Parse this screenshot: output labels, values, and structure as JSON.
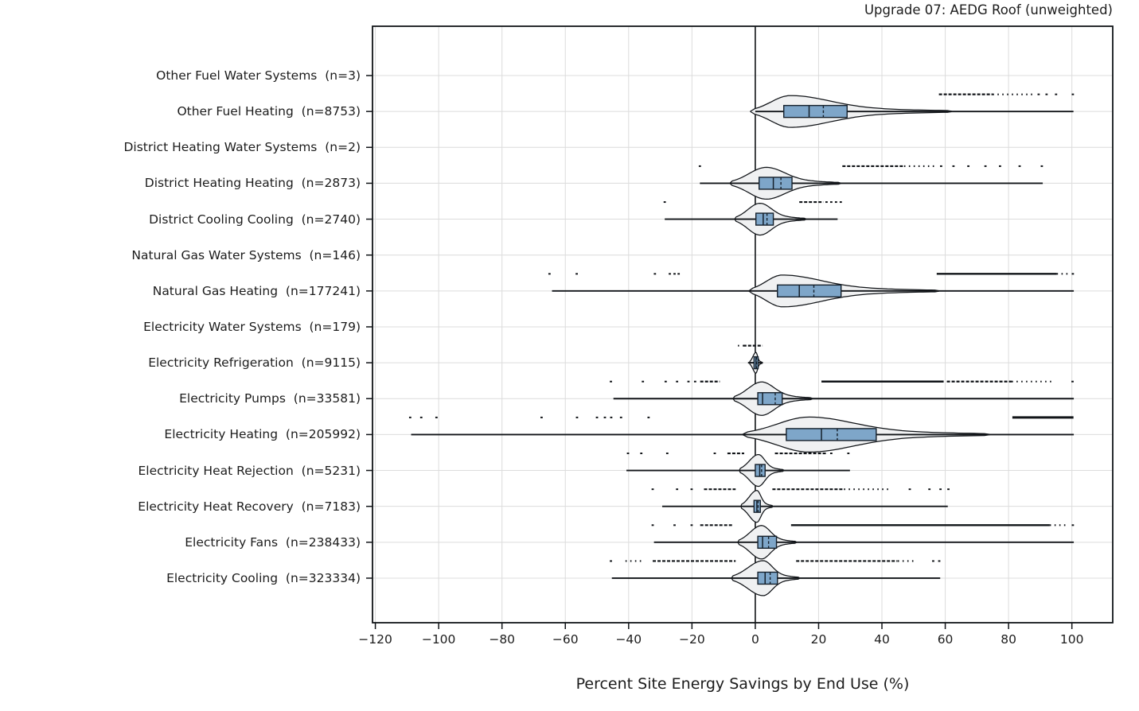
{
  "chart_data": {
    "type": "violin+box",
    "title": "Upgrade 07: AEDG Roof (unweighted)",
    "xlabel": "Percent Site Energy Savings by End Use (%)",
    "xlim": [
      -120.9,
      112.9
    ],
    "x_ticks": [
      -120,
      -100,
      -80,
      -60,
      -40,
      -20,
      0,
      20,
      40,
      60,
      80,
      100
    ],
    "grid": true,
    "zero_line": 0,
    "colors": {
      "box_fill": "#7ea6c9",
      "violin_fill": "#f0f1f2",
      "grid": "#dcdcdc",
      "line": "#111418",
      "text": "#1c1c1c"
    },
    "categories": [
      {
        "label": "Other Fuel Water Systems",
        "n": 3,
        "whisker": null,
        "box": null,
        "violin": null,
        "outlier_segments": [],
        "outlier_points": []
      },
      {
        "label": "Other Fuel Heating",
        "n": 8753,
        "whisker": [
          0,
          100.5
        ],
        "box": {
          "q1": 9.0,
          "median": 17.0,
          "mean": 21.5,
          "q3": 29.0
        },
        "violin": {
          "lo": -1.5,
          "hi": 62,
          "peak": 11,
          "hw": 20
        },
        "outlier_segments": [
          {
            "a": 58,
            "b": 75,
            "style": "dense"
          },
          {
            "a": 75,
            "b": 88,
            "style": "dots"
          }
        ],
        "outlier_points": [
          89.5,
          92,
          95,
          100.3
        ]
      },
      {
        "label": "District Heating Water Systems",
        "n": 2,
        "whisker": null,
        "box": null,
        "violin": null,
        "outlier_segments": [],
        "outlier_points": []
      },
      {
        "label": "District Heating Heating",
        "n": 2873,
        "whisker": [
          -17.5,
          90.8
        ],
        "box": {
          "q1": 1.2,
          "median": 5.7,
          "mean": 8.1,
          "q3": 11.6
        },
        "violin": {
          "lo": -8,
          "hi": 27,
          "peak": 3.5,
          "hw": 20
        },
        "outlier_segments": [
          {
            "a": 27.5,
            "b": 47,
            "style": "dense"
          },
          {
            "a": 47,
            "b": 57,
            "style": "dots"
          }
        ],
        "outlier_points": [
          -17.5,
          58.7,
          62.6,
          67.3,
          72.7,
          77.3,
          83.5,
          90.5
        ]
      },
      {
        "label": "District Cooling Cooling",
        "n": 2740,
        "whisker": [
          -28.6,
          26
        ],
        "box": {
          "q1": 0.2,
          "median": 2.5,
          "mean": 3.7,
          "q3": 5.7
        },
        "violin": {
          "lo": -6.5,
          "hi": 16,
          "peak": 1.5,
          "hw": 20
        },
        "outlier_segments": [
          {
            "a": 13.9,
            "b": 21.5,
            "style": "dense"
          }
        ],
        "outlier_points": [
          -28.6,
          22.5,
          24,
          25.5,
          27
        ]
      },
      {
        "label": "Natural Gas Water Systems",
        "n": 146,
        "whisker": null,
        "box": null,
        "violin": null,
        "outlier_segments": [],
        "outlier_points": []
      },
      {
        "label": "Natural Gas Heating",
        "n": 177241,
        "whisker": [
          -64.2,
          100.6
        ],
        "box": {
          "q1": 7.0,
          "median": 13.9,
          "mean": 18.5,
          "q3": 27.1
        },
        "violin": {
          "lo": -2,
          "hi": 58,
          "peak": 8.5,
          "hw": 20
        },
        "outlier_segments": [
          {
            "a": 57.3,
            "b": 95.2,
            "style": "solid"
          },
          {
            "a": 95.2,
            "b": 99.2,
            "style": "dots"
          }
        ],
        "outlier_points": [
          -65,
          -56.4,
          -31.7,
          -27,
          -25.5,
          -24.2,
          100.3
        ]
      },
      {
        "label": "Electricity Water Systems",
        "n": 179,
        "whisker": null,
        "box": null,
        "violin": null,
        "outlier_segments": [],
        "outlier_points": []
      },
      {
        "label": "Electricity Refrigeration",
        "n": 9115,
        "whisker": [
          -2.3,
          2.4
        ],
        "box": {
          "q1": -0.4,
          "median": 0.2,
          "mean": 0.4,
          "q3": 0.9
        },
        "violin": {
          "lo": -1.8,
          "hi": 2.2,
          "peak": 0.2,
          "hw": 13
        },
        "outlier_segments": [
          {
            "a": -5.5,
            "b": -3.8,
            "style": "dots"
          },
          {
            "a": -3.8,
            "b": 2.3,
            "style": "dense"
          }
        ],
        "outlier_points": []
      },
      {
        "label": "Electricity Pumps",
        "n": 33581,
        "whisker": [
          -44.8,
          100.6
        ],
        "box": {
          "q1": 0.8,
          "median": 2.3,
          "mean": 6.3,
          "q3": 8.5
        },
        "violin": {
          "lo": -7,
          "hi": 18,
          "peak": 2,
          "hw": 21
        },
        "outlier_segments": [
          {
            "a": -17.4,
            "b": -11.2,
            "style": "dense"
          },
          {
            "a": 20.9,
            "b": 59.5,
            "style": "solid"
          },
          {
            "a": 60.5,
            "b": 81,
            "style": "dense"
          },
          {
            "a": 81,
            "b": 94,
            "style": "dots"
          }
        ],
        "outlier_points": [
          -45.6,
          -35.5,
          -28.3,
          -24.7,
          -21.1,
          -19.0,
          100.2
        ]
      },
      {
        "label": "Electricity Heating",
        "n": 205992,
        "whisker": [
          -108.7,
          100.6
        ],
        "box": {
          "q1": 9.8,
          "median": 20.9,
          "mean": 25.9,
          "q3": 38.2
        },
        "violin": {
          "lo": -4,
          "hi": 74,
          "peak": 17,
          "hw": 22
        },
        "outlier_segments": [
          {
            "a": 81.2,
            "b": 100.5,
            "style": "thick"
          }
        ],
        "outlier_points": [
          -109,
          -105.5,
          -100.7,
          -67.5,
          -56.3,
          -50,
          -47.5,
          -45.5,
          -42.4,
          -33.7
        ]
      },
      {
        "label": "Electricity Heat Rejection",
        "n": 5231,
        "whisker": [
          -40.7,
          29.9
        ],
        "box": {
          "q1": 0.0,
          "median": 1.4,
          "mean": 2.0,
          "q3": 3.1
        },
        "violin": {
          "lo": -5,
          "hi": 9,
          "peak": 1,
          "hw": 20
        },
        "outlier_segments": [
          {
            "a": -8.8,
            "b": -3.5,
            "style": "dense"
          },
          {
            "a": 6.2,
            "b": 22.8,
            "style": "dense"
          }
        ],
        "outlier_points": [
          -40.2,
          -36,
          -27.8,
          -12.8,
          24.0,
          29.4
        ]
      },
      {
        "label": "Electricity Heat Recovery",
        "n": 7183,
        "whisker": [
          -29.4,
          60.8
        ],
        "box": {
          "q1": -0.4,
          "median": 0.5,
          "mean": 0.9,
          "q3": 1.6
        },
        "violin": {
          "lo": -4.5,
          "hi": 5.5,
          "peak": 0.5,
          "hw": 20
        },
        "outlier_segments": [
          {
            "a": -16.2,
            "b": -6.2,
            "style": "dense"
          },
          {
            "a": 5.4,
            "b": 28,
            "style": "dense"
          },
          {
            "a": 28,
            "b": 42,
            "style": "dots"
          }
        ],
        "outlier_points": [
          -32.4,
          -24.7,
          -20.1,
          48.8,
          55.0,
          58.5,
          61.0
        ]
      },
      {
        "label": "Electricity Fans",
        "n": 238433,
        "whisker": [
          -32,
          100.6
        ],
        "box": {
          "q1": 0.8,
          "median": 2.3,
          "mean": 4.2,
          "q3": 6.7
        },
        "violin": {
          "lo": -5.5,
          "hi": 13,
          "peak": 2,
          "hw": 21
        },
        "outlier_segments": [
          {
            "a": -17.4,
            "b": -6.9,
            "style": "dense"
          },
          {
            "a": 11.3,
            "b": 93,
            "style": "solid"
          },
          {
            "a": 93,
            "b": 99,
            "style": "dots"
          }
        ],
        "outlier_points": [
          -32.4,
          -25.5,
          -20.1,
          100.3
        ]
      },
      {
        "label": "Electricity Cooling",
        "n": 323334,
        "whisker": [
          -45.3,
          58.4
        ],
        "box": {
          "q1": 0.8,
          "median": 3.1,
          "mean": 4.7,
          "q3": 7.0
        },
        "violin": {
          "lo": -7.5,
          "hi": 14,
          "peak": 2.5,
          "hw": 22
        },
        "outlier_segments": [
          {
            "a": -41,
            "b": -35.5,
            "style": "dots"
          },
          {
            "a": -32.4,
            "b": -6.2,
            "style": "dense"
          },
          {
            "a": 12.9,
            "b": 44.9,
            "style": "dense"
          },
          {
            "a": 45,
            "b": 50,
            "style": "dots"
          }
        ],
        "outlier_points": [
          -45.6,
          56.2,
          58.1
        ]
      }
    ]
  }
}
